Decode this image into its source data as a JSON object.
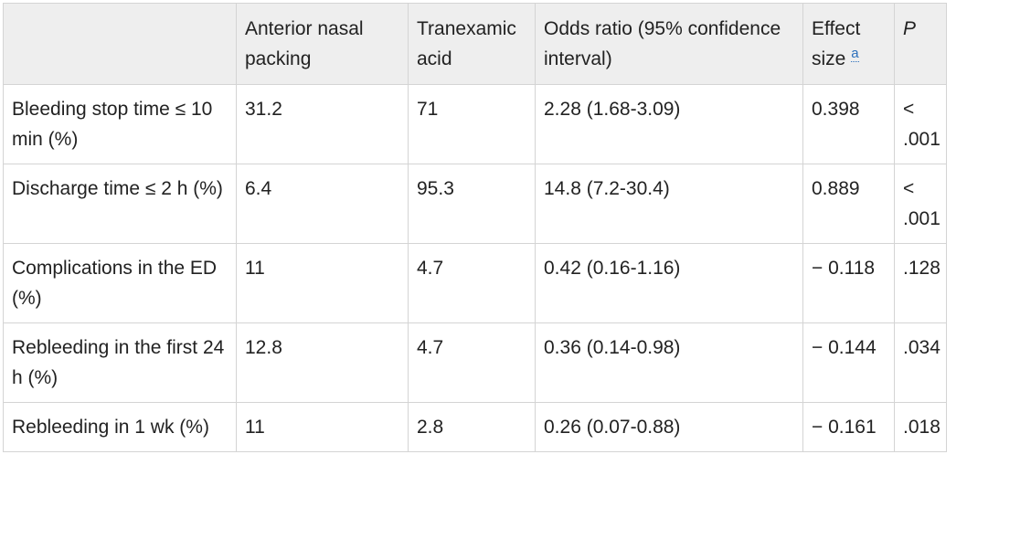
{
  "table": {
    "headers": {
      "label": "",
      "anterior_nasal_packing": "Anterior nasal packing",
      "tranexamic_acid": "Tranexamic acid",
      "odds_ratio": "Odds ratio (95% confidence interval)",
      "effect_size": "Effect size",
      "effect_size_footnote": "a",
      "p": "P"
    },
    "rows": [
      {
        "label": "Bleeding stop time ≤ 10 min (%)",
        "anterior_nasal_packing": "31.2",
        "tranexamic_acid": "71",
        "odds_ratio": "2.28 (1.68-3.09)",
        "effect_size": "0.398",
        "p": "< .001"
      },
      {
        "label": "Discharge time ≤ 2 h (%)",
        "anterior_nasal_packing": "6.4",
        "tranexamic_acid": "95.3",
        "odds_ratio": "14.8 (7.2-30.4)",
        "effect_size": "0.889",
        "p": "< .001"
      },
      {
        "label": "Complications in the ED (%)",
        "anterior_nasal_packing": "11",
        "tranexamic_acid": "4.7",
        "odds_ratio": "0.42 (0.16-1.16)",
        "effect_size": "− 0.118",
        "p": ".128"
      },
      {
        "label": "Rebleeding in the first 24 h (%)",
        "anterior_nasal_packing": "12.8",
        "tranexamic_acid": "4.7",
        "odds_ratio": "0.36 (0.14-0.98)",
        "effect_size": "− 0.144",
        "p": ".034"
      },
      {
        "label": "Rebleeding in 1 wk (%)",
        "anterior_nasal_packing": "11",
        "tranexamic_acid": "2.8",
        "odds_ratio": "0.26 (0.07-0.88)",
        "effect_size": "− 0.161",
        "p": ".018"
      }
    ]
  },
  "colors": {
    "header_background": "#eeeeee",
    "border": "#d4d4d4",
    "text": "#222222",
    "footnote_link": "#2a6ebb"
  }
}
